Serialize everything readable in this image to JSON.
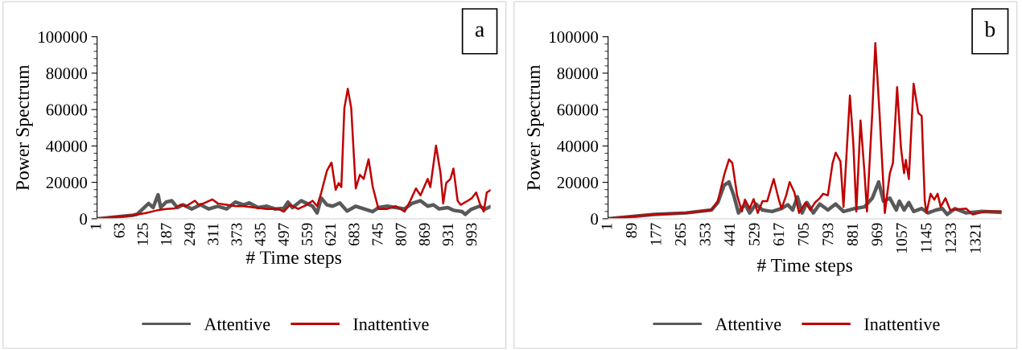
{
  "chart_data": [
    {
      "type": "line",
      "xlabel": "# Time steps",
      "ylabel": "Power Spectrum",
      "annotations": [
        "a"
      ],
      "legend": "bottom",
      "grid": false,
      "xlim": [
        1,
        1040
      ],
      "xticks": [
        1,
        63,
        125,
        187,
        249,
        311,
        373,
        435,
        497,
        559,
        621,
        683,
        745,
        807,
        869,
        931,
        993
      ],
      "ylim": [
        0,
        100000
      ],
      "yticks": [
        0,
        20000,
        40000,
        60000,
        80000,
        100000
      ],
      "series": [
        {
          "name": "Attentive",
          "color": "#595959",
          "x": [
            1,
            96,
            107,
            137,
            149,
            162,
            169,
            183,
            198,
            213,
            228,
            251,
            274,
            296,
            320,
            343,
            366,
            388,
            403,
            426,
            449,
            471,
            494,
            505,
            517,
            540,
            555,
            570,
            582,
            593,
            608,
            623,
            642,
            661,
            684,
            706,
            729,
            744,
            767,
            790,
            813,
            832,
            855,
            874,
            889,
            904,
            927,
            942,
            965,
            973,
            988,
            1011,
            1026,
            1039
          ],
          "values": [
            0,
            1950,
            2500,
            8400,
            6150,
            13200,
            6150,
            9150,
            9900,
            6150,
            7650,
            5400,
            7650,
            5400,
            6900,
            5400,
            9150,
            7650,
            8700,
            6150,
            6900,
            5400,
            5700,
            9150,
            6150,
            9900,
            8400,
            6900,
            3150,
            11400,
            7650,
            6900,
            8700,
            4200,
            6900,
            5400,
            3900,
            6150,
            6900,
            6150,
            5400,
            8400,
            9900,
            6900,
            7650,
            5400,
            6150,
            4650,
            3900,
            2400,
            5100,
            6900,
            5400,
            6600
          ]
        },
        {
          "name": "Inattentive",
          "color": "#c00000",
          "x": [
            1,
            96,
            130,
            160,
            183,
            206,
            221,
            236,
            259,
            270,
            282,
            305,
            320,
            343,
            366,
            388,
            418,
            449,
            479,
            494,
            510,
            532,
            555,
            570,
            582,
            593,
            608,
            620,
            631,
            639,
            646,
            654,
            663,
            672,
            684,
            695,
            705,
            718,
            729,
            744,
            767,
            790,
            813,
            828,
            843,
            855,
            874,
            881,
            896,
            908,
            915,
            923,
            934,
            942,
            953,
            961,
            980,
            991,
            1002,
            1013,
            1022,
            1030,
            1039
          ],
          "values": [
            0,
            1950,
            3150,
            4650,
            5400,
            5700,
            7650,
            6900,
            9900,
            7650,
            8400,
            10650,
            8400,
            7650,
            6900,
            6900,
            6150,
            5400,
            5400,
            3900,
            7650,
            5400,
            7650,
            9900,
            6900,
            14400,
            26400,
            30900,
            15900,
            19650,
            17400,
            60900,
            71400,
            60900,
            16650,
            24150,
            21900,
            32700,
            17400,
            5400,
            5400,
            6900,
            3900,
            9900,
            16650,
            12900,
            21900,
            17400,
            40200,
            24900,
            8400,
            19650,
            21900,
            27600,
            9900,
            7650,
            9900,
            11400,
            14400,
            7650,
            3900,
            14400,
            15600
          ]
        }
      ]
    },
    {
      "type": "line",
      "xlabel": "# Time steps",
      "ylabel": "Power Spectrum",
      "annotations": [
        "b"
      ],
      "legend": "bottom",
      "grid": false,
      "xlim": [
        1,
        1410
      ],
      "xticks": [
        1,
        89,
        177,
        265,
        353,
        441,
        529,
        617,
        705,
        793,
        881,
        969,
        1057,
        1145,
        1233,
        1321
      ],
      "ylim": [
        0,
        100000
      ],
      "yticks": [
        0,
        20000,
        40000,
        60000,
        80000,
        100000
      ],
      "series": [
        {
          "name": "Attentive",
          "color": "#595959",
          "x": [
            1,
            166,
            280,
            371,
            394,
            417,
            434,
            451,
            468,
            491,
            508,
            531,
            554,
            588,
            622,
            645,
            662,
            679,
            696,
            713,
            736,
            759,
            788,
            816,
            844,
            884,
            919,
            947,
            970,
            987,
            1010,
            1033,
            1044,
            1061,
            1078,
            1095,
            1124,
            1147,
            1175,
            1198,
            1215,
            1243,
            1283,
            1340,
            1409
          ],
          "values": [
            0,
            2400,
            3200,
            4800,
            8900,
            18500,
            20200,
            12900,
            3200,
            8100,
            3200,
            8100,
            4800,
            4000,
            5600,
            7700,
            4800,
            12100,
            3200,
            8900,
            3200,
            8100,
            4800,
            8100,
            4000,
            5600,
            6500,
            11300,
            20200,
            9700,
            11300,
            4800,
            9700,
            4800,
            8900,
            4000,
            5600,
            3200,
            4800,
            5600,
            2400,
            5600,
            3200,
            4000,
            3500
          ]
        },
        {
          "name": "Inattentive",
          "color": "#c00000",
          "x": [
            1,
            166,
            280,
            371,
            394,
            417,
            434,
            446,
            463,
            480,
            491,
            508,
            522,
            537,
            554,
            571,
            583,
            594,
            611,
            622,
            639,
            651,
            668,
            685,
            708,
            725,
            742,
            759,
            771,
            788,
            805,
            816,
            833,
            844,
            867,
            879,
            890,
            905,
            919,
            928,
            947,
            958,
            973,
            992,
            1010,
            1021,
            1036,
            1050,
            1061,
            1067,
            1078,
            1095,
            1112,
            1124,
            1135,
            1141,
            1156,
            1169,
            1181,
            1192,
            1209,
            1226,
            1283,
            1306,
            1352,
            1409
          ],
          "values": [
            0,
            2400,
            3200,
            4800,
            9700,
            24200,
            32600,
            30600,
            12900,
            4000,
            10500,
            5600,
            10800,
            3200,
            9700,
            9700,
            16100,
            21800,
            11300,
            5600,
            12900,
            20200,
            14500,
            3200,
            8900,
            4800,
            8900,
            11300,
            13700,
            12900,
            30600,
            36300,
            31500,
            6500,
            67700,
            41900,
            4000,
            54000,
            25800,
            4000,
            58100,
            96500,
            58100,
            3200,
            25000,
            30600,
            72300,
            38700,
            25000,
            32300,
            21800,
            74200,
            58100,
            56500,
            9700,
            3200,
            13700,
            10500,
            13700,
            6500,
            11300,
            4800,
            5600,
            2400,
            4000,
            4000
          ]
        }
      ]
    }
  ]
}
